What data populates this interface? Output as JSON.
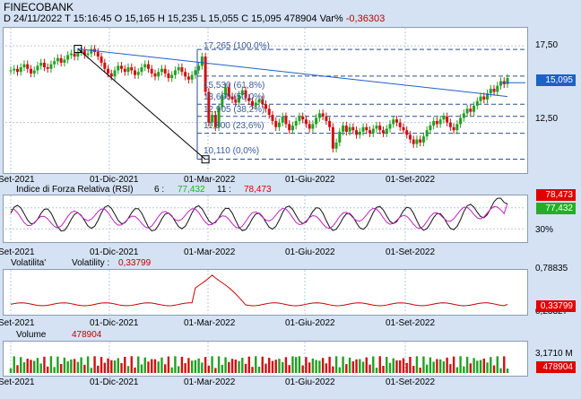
{
  "header": {
    "title": "FINECOBANK",
    "date": "D 24/11/2022",
    "time": "T 15:16:45",
    "open": "O 15,165",
    "high": "H 15,235",
    "low": "L 15,055",
    "close": "C 15,095",
    "volume": "478904",
    "var_label": "Var%",
    "var_value": "-0,36303"
  },
  "colors": {
    "blue_tag": "#1f5fc8",
    "red_tag": "#e00000",
    "green_tag": "#22b022",
    "up": "#22a022",
    "down": "#d01010"
  },
  "x_labels": [
    "Set-2021",
    "01-Dic-2021",
    "01-Mar-2022",
    "01-Giu-2022",
    "01-Set-2022"
  ],
  "chart_data": [
    {
      "type": "candlestick",
      "title": "FINECOBANK",
      "y_ticks": [
        "17,50",
        "12,50"
      ],
      "ylim": [
        9.5,
        18.5
      ],
      "last_value_label": "15,095",
      "last_value": 15.095,
      "fibonacci": [
        {
          "label": "17,265 (100,0%)",
          "value": 17.265
        },
        {
          "label": "15,530 (61,8%)",
          "value": 15.53
        },
        {
          "label": "13,690 (50,0%)",
          "value": 13.69
        },
        {
          "label": "12,905 (38,2%)",
          "value": 12.905
        },
        {
          "label": "11,800 (23,6%)",
          "value": 11.8
        },
        {
          "label": "10,110 (0,0%)",
          "value": 10.11
        }
      ],
      "trendline": {
        "start": 17.3,
        "end": 14.2
      },
      "close_series": [
        15.9,
        16.0,
        15.8,
        16.1,
        16.3,
        16.0,
        15.7,
        15.9,
        16.2,
        16.4,
        16.1,
        16.0,
        16.3,
        16.5,
        16.7,
        16.4,
        16.6,
        16.9,
        17.0,
        16.8,
        17.1,
        17.2,
        16.9,
        17.0,
        17.3,
        17.1,
        16.8,
        16.4,
        16.0,
        15.7,
        15.5,
        15.9,
        16.2,
        16.0,
        15.8,
        16.1,
        15.9,
        15.6,
        15.8,
        16.1,
        16.3,
        16.0,
        15.7,
        15.5,
        15.8,
        16.0,
        15.7,
        15.4,
        15.6,
        15.9,
        16.1,
        15.8,
        15.5,
        15.3,
        15.6,
        15.9,
        16.2,
        16.8,
        14.5,
        12.5,
        13.0,
        12.2,
        13.5,
        14.3,
        14.8,
        14.2,
        14.0,
        13.8,
        14.3,
        14.6,
        14.1,
        13.9,
        13.6,
        13.8,
        14.0,
        13.7,
        13.4,
        13.0,
        12.6,
        12.2,
        12.5,
        12.9,
        12.4,
        12.0,
        12.3,
        12.6,
        12.9,
        12.7,
        12.4,
        12.1,
        12.4,
        12.8,
        13.1,
        12.9,
        12.6,
        12.2,
        10.8,
        11.2,
        11.9,
        12.3,
        11.9,
        12.2,
        12.0,
        11.7,
        11.9,
        12.2,
        12.0,
        11.8,
        12.1,
        12.3,
        12.0,
        11.8,
        12.1,
        12.4,
        12.7,
        12.5,
        12.2,
        12.0,
        11.7,
        11.4,
        11.1,
        11.4,
        11.2,
        11.6,
        12.0,
        12.3,
        12.6,
        12.4,
        12.7,
        12.9,
        12.5,
        12.2,
        12.0,
        12.4,
        12.8,
        13.1,
        13.4,
        13.2,
        13.6,
        13.9,
        14.2,
        14.0,
        14.4,
        14.7,
        14.5,
        14.9,
        15.2,
        15.0,
        15.4
      ]
    },
    {
      "type": "line",
      "title": "Indice di Forza Relativa (RSI)",
      "series": [
        {
          "name": "6",
          "label": "6 :",
          "last": "77,432",
          "last_value": 77.432,
          "color": "#22b022"
        },
        {
          "name": "11",
          "label": "11 :",
          "last": "78,473",
          "last_value": 78.473,
          "color": "#e00000"
        }
      ],
      "y_ticks": [
        "30%"
      ],
      "ylim": [
        10,
        90
      ]
    },
    {
      "type": "line",
      "title": "Volatilita'",
      "series": [
        {
          "name": "Volatility",
          "label": "Volatility :",
          "last": "0,33799",
          "last_value": 0.33799,
          "color": "#cc0000"
        }
      ],
      "y_top_label": "0,78835",
      "y_bottom_label": "0,23327",
      "ylim": [
        0.23327,
        0.78835
      ]
    },
    {
      "type": "bar",
      "title": "Volume",
      "series": [
        {
          "name": "Volume",
          "last": "478904",
          "last_value": 478904
        }
      ],
      "y_top_label": "3,1710 M",
      "ylim": [
        0,
        3171000
      ]
    }
  ]
}
